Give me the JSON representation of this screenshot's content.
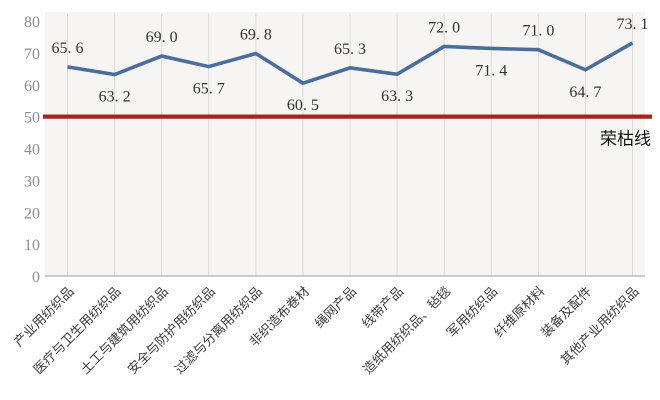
{
  "chart_data": {
    "type": "line",
    "title": "",
    "categories": [
      "产业用纺织品",
      "医疗与卫生用纺织品",
      "土工与建筑用纺织品",
      "安全与防护用纺织品",
      "过滤与分离用纺织品",
      "非织造布卷材",
      "绳网产品",
      "线带产品",
      "造纸用纺织品、毡毯",
      "军用纺织品",
      "纤维原材料",
      "装备及配件",
      "其他产业用纺织品"
    ],
    "series": [
      {
        "name": "",
        "values": [
          65.6,
          63.2,
          69.0,
          65.7,
          69.8,
          60.5,
          65.3,
          63.3,
          72.0,
          71.4,
          71.0,
          64.7,
          73.1
        ],
        "color": "#4a6d9e"
      }
    ],
    "value_labels": [
      "65. 6",
      "63. 2",
      "69. 0",
      "65. 7",
      "69. 8",
      "60. 5",
      "65. 3",
      "63. 3",
      "72. 0",
      "71. 4",
      "71. 0",
      "64. 7",
      "73. 1"
    ],
    "label_side": [
      "above",
      "below",
      "above",
      "below",
      "above",
      "below",
      "above",
      "below",
      "above",
      "below",
      "above",
      "below",
      "above"
    ],
    "xlabel": "",
    "ylabel": "",
    "ylim": [
      0,
      80
    ],
    "yticks": [
      0,
      10,
      20,
      30,
      40,
      50,
      60,
      70,
      80
    ],
    "grid": "vertical-only",
    "legend": "none",
    "reference_line": {
      "value": 50,
      "label": "荣枯线",
      "color": "#a6241f"
    }
  },
  "style": {
    "background": "#ffffff",
    "plot_background": "#f6f5f4",
    "gridline_color": "#dbdada",
    "axis_line_color": "#b3b1b0",
    "ytick_color": "#8e8c8b",
    "data_label_color": "#333333",
    "category_label_color": "#3c3c3c",
    "series_line_color": "#4a6d9e",
    "reference_line_color": "#a6241f"
  }
}
